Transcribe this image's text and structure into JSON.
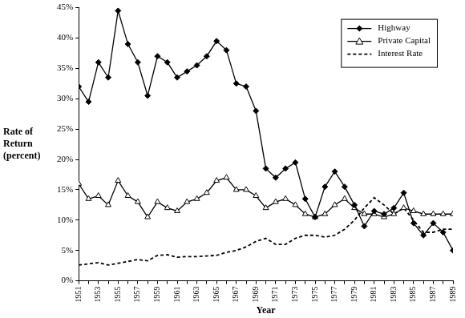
{
  "chart_data": {
    "type": "line",
    "y_label": "Rate of Return (percent)",
    "x_label": "Year",
    "categories": [
      "1951",
      null,
      "1953",
      null,
      "1955",
      null,
      "1957",
      null,
      "1959",
      null,
      "1961",
      null,
      "1963",
      null,
      "1965",
      null,
      "1967",
      null,
      "1969",
      null,
      "1971",
      null,
      "1973",
      null,
      "1975",
      null,
      "1977",
      null,
      "1979",
      null,
      "1981",
      null,
      "1983",
      null,
      "1985",
      null,
      "1987",
      null,
      "1989"
    ],
    "series": [
      {
        "name": "Highway",
        "color": "#000000",
        "marker": "diamond",
        "line_style": "solid",
        "values": [
          32,
          29.5,
          36,
          33.5,
          44.5,
          39,
          36,
          30.5,
          37,
          36,
          33.5,
          34.5,
          35.5,
          37,
          39.5,
          38,
          32.5,
          32,
          28,
          18.5,
          17,
          18.5,
          19.5,
          13.5,
          10.5,
          15.5,
          18,
          15.5,
          12.5,
          9,
          11.5,
          11,
          12,
          14.5,
          9.5,
          7.5,
          9.5,
          8,
          5
        ]
      },
      {
        "name": "Private Capital",
        "color": "#000000",
        "marker": "triangle",
        "line_style": "solid",
        "values": [
          16,
          13.5,
          14,
          12.5,
          16.5,
          14,
          13,
          10.5,
          13,
          12,
          11.5,
          13,
          13.5,
          14.5,
          16.5,
          17,
          15,
          15,
          14,
          12,
          13,
          13.5,
          12.5,
          11,
          10.5,
          11,
          12.5,
          13.5,
          12,
          11,
          11,
          10.5,
          11,
          12,
          11.5,
          11,
          11,
          11,
          11
        ]
      },
      {
        "name": "Interest Rate",
        "color": "#000000",
        "marker": "none",
        "line_style": "dashed",
        "values": [
          2.6,
          2.8,
          3,
          2.6,
          2.9,
          3.2,
          3.5,
          3.3,
          4.2,
          4.3,
          3.9,
          4,
          4,
          4.1,
          4.2,
          4.7,
          5,
          5.6,
          6.5,
          7,
          6,
          6,
          7,
          7.5,
          7.5,
          7.2,
          7.5,
          8.5,
          10,
          12,
          13.7,
          12.5,
          11,
          12,
          10,
          8,
          8,
          8.5,
          8.5
        ]
      }
    ],
    "ylim": [
      0,
      45
    ],
    "yticks": [
      {
        "value": 0,
        "label": "0%"
      },
      {
        "value": 5,
        "label": "5%"
      },
      {
        "value": 10,
        "label": "10%"
      },
      {
        "value": 15,
        "label": "15%"
      },
      {
        "value": 20,
        "label": "20%"
      },
      {
        "value": 25,
        "label": "25%"
      },
      {
        "value": 30,
        "label": "30%"
      },
      {
        "value": 35,
        "label": "35%"
      },
      {
        "value": 40,
        "label": "40%"
      },
      {
        "value": 45,
        "label": "45%"
      }
    ],
    "grid": false,
    "legend": "upper right"
  }
}
